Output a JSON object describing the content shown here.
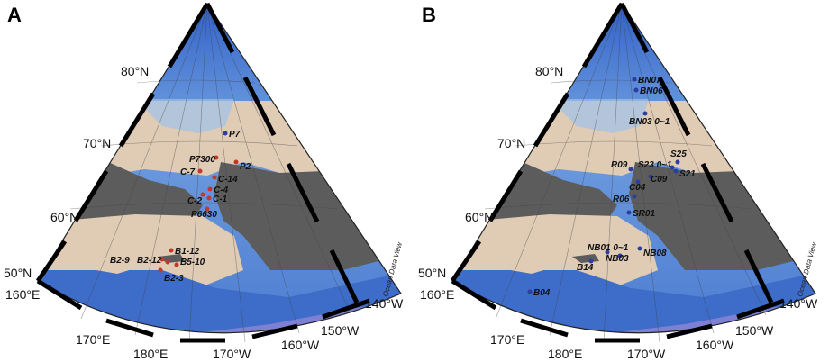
{
  "panels": [
    {
      "letter": "A",
      "lat_labels": [
        "80°N",
        "70°N",
        "60°N",
        "50°N"
      ],
      "lon_labels": [
        "160°E",
        "170°E",
        "180°E",
        "170°W",
        "160°W",
        "150°W",
        "140°W"
      ],
      "credit": "Ocean Data View",
      "station_color": "#c0392b",
      "stations": [
        "P7",
        "P7300",
        "P2",
        "C-7",
        "C-14",
        "C-4",
        "C-2",
        "C-1",
        "P6630",
        "B1-12",
        "B2-9",
        "B2-12",
        "B5-10",
        "B2-3"
      ]
    },
    {
      "letter": "B",
      "lat_labels": [
        "80°N",
        "70°N",
        "60°N",
        "50°N"
      ],
      "lon_labels": [
        "160°E",
        "170°E",
        "180°E",
        "170°W",
        "160°W",
        "150°W",
        "140°W"
      ],
      "credit": "Ocean Data View",
      "station_color": "#2c3e9e",
      "stations": [
        "BN07",
        "BN06",
        "BN03 0~1",
        "S25",
        "R09",
        "S23 0~1",
        "S21",
        "C09",
        "C04",
        "R06",
        "SR01",
        "NB01 0~1",
        "NB08",
        "NB03",
        "B14",
        "B04"
      ]
    }
  ]
}
